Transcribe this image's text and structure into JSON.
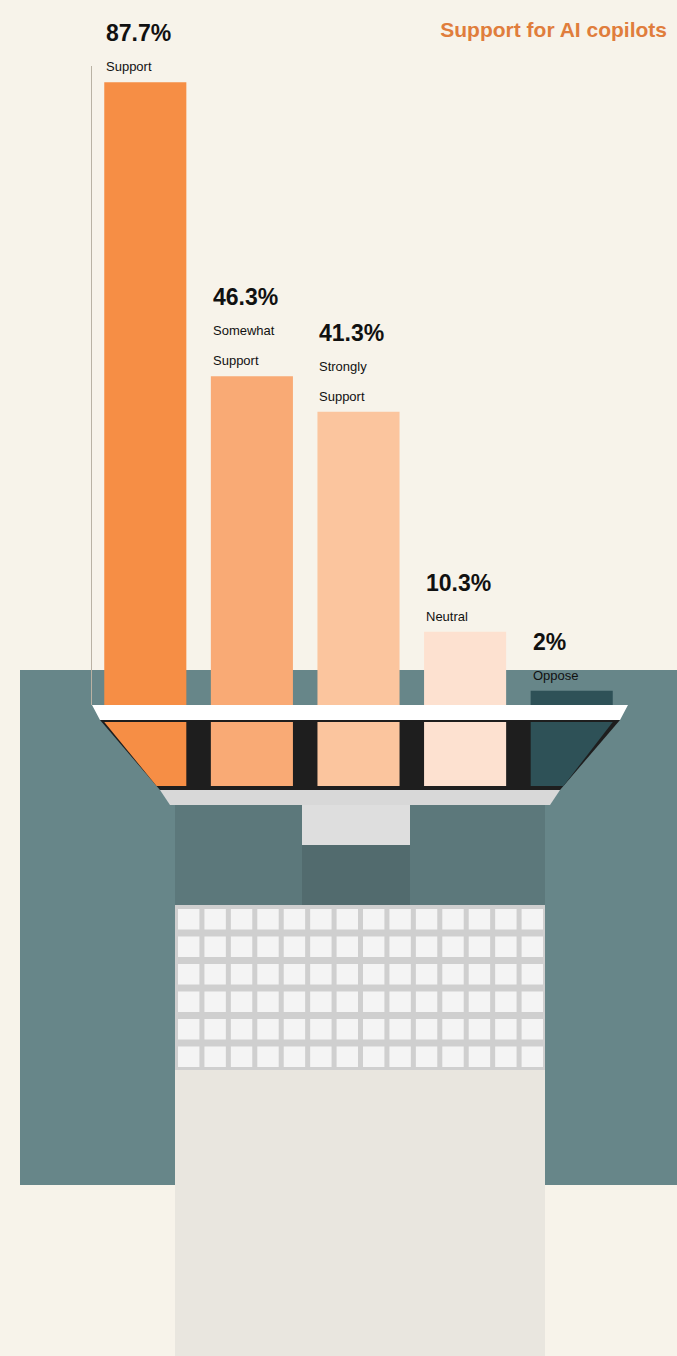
{
  "chart_data": {
    "type": "bar",
    "title": "Support for AI copilots",
    "categories": [
      "Support",
      "Somewhat Support",
      "Strongly Support",
      "Neutral",
      "Oppose"
    ],
    "values": [
      87.7,
      46.3,
      41.3,
      10.3,
      2
    ],
    "value_labels": [
      "87.7%",
      "46.3%",
      "41.3%",
      "10.3%",
      "2%"
    ],
    "colors": [
      "#f68e45",
      "#f9aa75",
      "#fbc59e",
      "#fde1d0",
      "#2e5157"
    ],
    "ylim": [
      0,
      90
    ],
    "yticks": [],
    "grid": false,
    "data_labels": true,
    "tick_labels": false
  }
}
